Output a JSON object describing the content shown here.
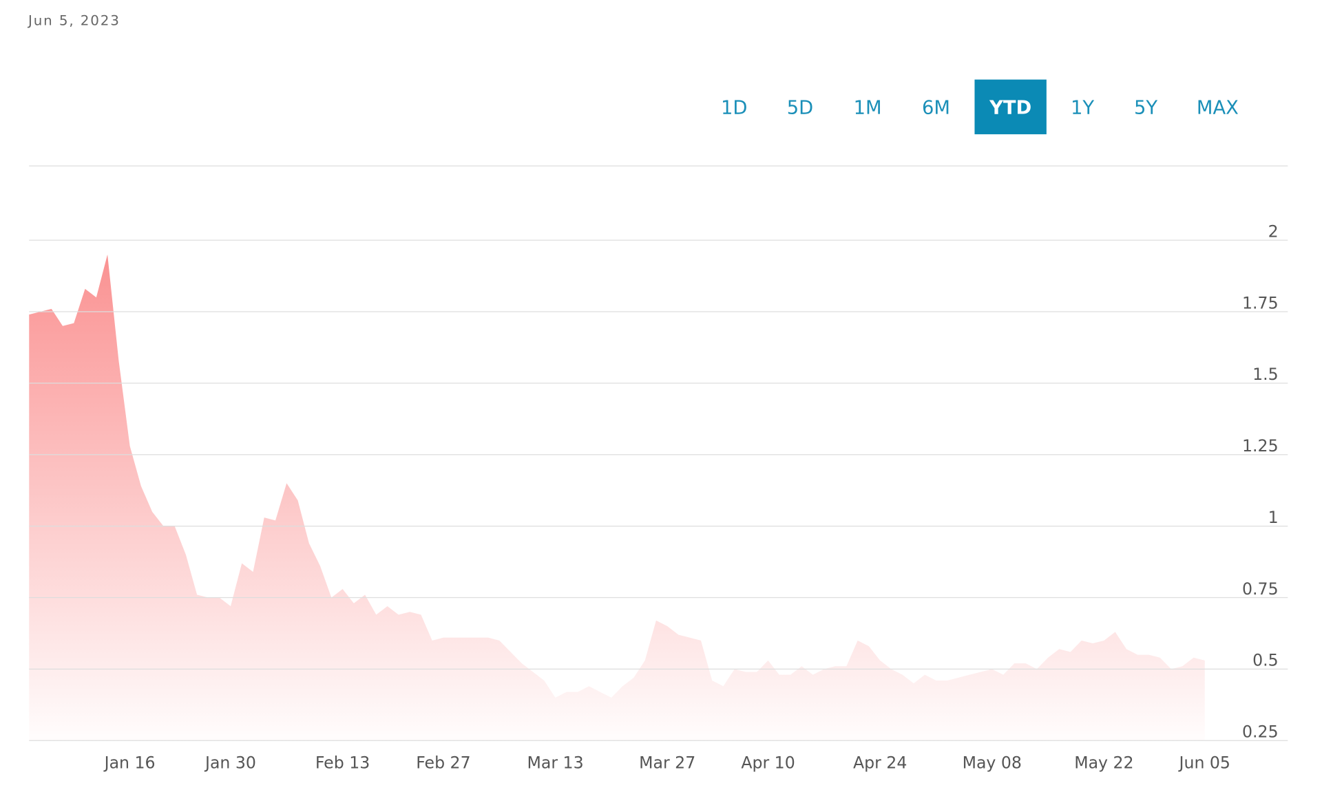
{
  "header": {
    "date": "Jun 5, 2023"
  },
  "range_selector": {
    "buttons": [
      "1D",
      "5D",
      "1M",
      "6M",
      "YTD",
      "1Y",
      "5Y",
      "MAX"
    ],
    "selected": 4
  },
  "chart_data": {
    "type": "area",
    "color": "#fa8c8c",
    "categories": [
      null,
      null,
      null,
      null,
      null,
      null,
      null,
      null,
      null,
      "Jan 16",
      null,
      null,
      null,
      null,
      null,
      null,
      null,
      null,
      "Jan 30",
      null,
      null,
      null,
      null,
      null,
      null,
      null,
      null,
      null,
      "Feb 13",
      null,
      null,
      null,
      null,
      null,
      null,
      null,
      null,
      "Feb 27",
      null,
      null,
      null,
      null,
      null,
      null,
      null,
      null,
      null,
      "Mar 13",
      null,
      null,
      null,
      null,
      null,
      null,
      null,
      null,
      null,
      "Mar 27",
      null,
      null,
      null,
      null,
      null,
      null,
      null,
      null,
      "Apr 10",
      null,
      null,
      null,
      null,
      null,
      null,
      null,
      null,
      null,
      "Apr 24",
      null,
      null,
      null,
      null,
      null,
      null,
      null,
      null,
      null,
      "May 08",
      null,
      null,
      null,
      null,
      null,
      null,
      null,
      null,
      null,
      "May 22",
      null,
      null,
      null,
      null,
      null,
      null,
      null,
      null,
      "Jun 05"
    ],
    "values": [
      1.74,
      1.75,
      1.76,
      1.7,
      1.71,
      1.83,
      1.8,
      1.95,
      1.58,
      1.28,
      1.14,
      1.05,
      1.0,
      1.0,
      0.9,
      0.76,
      0.75,
      0.75,
      0.72,
      0.87,
      0.84,
      1.03,
      1.02,
      1.15,
      1.09,
      0.94,
      0.86,
      0.75,
      0.78,
      0.73,
      0.76,
      0.69,
      0.72,
      0.69,
      0.7,
      0.69,
      0.6,
      0.61,
      0.61,
      0.61,
      0.61,
      0.61,
      0.6,
      0.56,
      0.52,
      0.49,
      0.46,
      0.4,
      0.42,
      0.42,
      0.44,
      0.42,
      0.4,
      0.44,
      0.47,
      0.53,
      0.67,
      0.65,
      0.62,
      0.61,
      0.6,
      0.46,
      0.44,
      0.5,
      0.49,
      0.49,
      0.53,
      0.48,
      0.48,
      0.51,
      0.48,
      0.5,
      0.51,
      0.51,
      0.6,
      0.58,
      0.53,
      0.5,
      0.48,
      0.45,
      0.48,
      0.46,
      0.46,
      0.47,
      0.48,
      0.49,
      0.5,
      0.48,
      0.52,
      0.52,
      0.5,
      0.54,
      0.57,
      0.56,
      0.6,
      0.59,
      0.6,
      0.63,
      0.57,
      0.55,
      0.55,
      0.54,
      0.5,
      0.51,
      0.54,
      0.53
    ],
    "ylim": [
      0.25,
      2.26
    ],
    "yticks": [
      0.25,
      0.5,
      0.75,
      1,
      1.25,
      1.5,
      1.75,
      2
    ],
    "grid": true
  }
}
